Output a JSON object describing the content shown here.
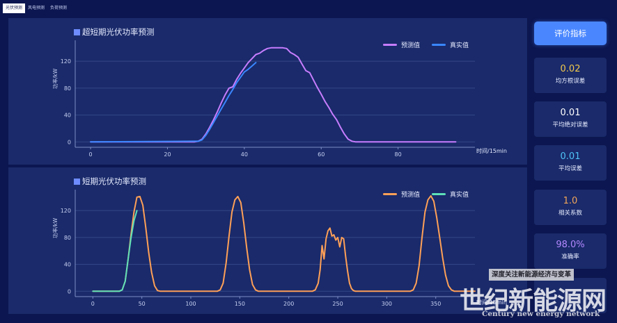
{
  "tabs": [
    {
      "label": "光伏预测",
      "active": true
    },
    {
      "label": "风电预测",
      "active": false
    },
    {
      "label": "负荷预测",
      "active": false
    }
  ],
  "sidebar": {
    "eval_button": "评价指标",
    "metrics": [
      {
        "value": "0.02",
        "label": "均方根误差",
        "color": "#f2c94c"
      },
      {
        "value": "0.01",
        "label": "平均绝对误差",
        "color": "#ffffff"
      },
      {
        "value": "0.01",
        "label": "平均误差",
        "color": "#4fc3f7"
      },
      {
        "value": "1.0",
        "label": "相关系数",
        "color": "#f2a65a"
      },
      {
        "value": "98.0%",
        "label": "准确率",
        "color": "#b388ff"
      },
      {
        "value": "",
        "label": "",
        "color": "#69f0ae"
      }
    ]
  },
  "watermark": {
    "banner": "深度关注新能源经济与变革",
    "big": "世纪新能源网",
    "en": "Century new energy network"
  },
  "chart_data": [
    {
      "type": "line",
      "title": "超短期光伏功率预测",
      "xlabel": "时间/15min",
      "ylabel": "功率/kW",
      "xlim": [
        -4,
        100
      ],
      "ylim": [
        -8,
        145
      ],
      "xticks": [
        0,
        20,
        40,
        60,
        80
      ],
      "yticks": [
        0,
        40,
        80,
        120
      ],
      "legend_position": "top-right",
      "series": [
        {
          "name": "预测值",
          "color": "#c77dff",
          "x": [
            0,
            27,
            28,
            29,
            30,
            31,
            32,
            33,
            34,
            35,
            36,
            37,
            38,
            39,
            40,
            41,
            42,
            43,
            44,
            45,
            46,
            47,
            48,
            49,
            50,
            51,
            52,
            53,
            54,
            55,
            56,
            57,
            58,
            59,
            60,
            61,
            62,
            63,
            64,
            65,
            66,
            67,
            68,
            69,
            70,
            95
          ],
          "values": [
            0,
            0,
            1,
            4,
            12,
            22,
            33,
            45,
            58,
            70,
            80,
            82,
            93,
            102,
            110,
            118,
            124,
            130,
            132,
            136,
            139,
            140,
            140,
            140,
            140,
            139,
            133,
            130,
            126,
            116,
            106,
            103,
            92,
            81,
            71,
            60,
            51,
            41,
            33,
            22,
            12,
            4,
            1,
            0,
            0,
            0
          ]
        },
        {
          "name": "真实值",
          "color": "#3a86ff",
          "x": [
            0,
            28,
            29,
            30,
            31,
            32,
            33,
            34,
            35,
            36,
            37,
            38,
            39,
            40,
            41,
            42,
            43
          ],
          "values": [
            0,
            1,
            3,
            10,
            19,
            29,
            39,
            49,
            59,
            69,
            78,
            88,
            96,
            104,
            108,
            113,
            118
          ]
        }
      ]
    },
    {
      "type": "line",
      "title": "短期光伏功率预测",
      "xlabel": "时间/15min",
      "ylabel": "功率/kW",
      "xlim": [
        -18,
        390
      ],
      "ylim": [
        -8,
        145
      ],
      "xticks": [
        0,
        50,
        100,
        150,
        200,
        250,
        300,
        350
      ],
      "yticks": [
        0,
        40,
        80,
        120
      ],
      "legend_position": "top-right",
      "series": [
        {
          "name": "预测值",
          "color": "#ffa057",
          "x": [
            0,
            27,
            30,
            33,
            36,
            39,
            42,
            45,
            48,
            51,
            54,
            57,
            60,
            63,
            66,
            69,
            127,
            130,
            133,
            136,
            139,
            142,
            145,
            148,
            151,
            154,
            157,
            160,
            163,
            166,
            169,
            224,
            227,
            230,
            232,
            234,
            236,
            238,
            240,
            242,
            244,
            246,
            248,
            250,
            252,
            254,
            256,
            258,
            260,
            262,
            264,
            266,
            268,
            271,
            324,
            327,
            330,
            333,
            336,
            339,
            342,
            345,
            348,
            351,
            354,
            357,
            360,
            363,
            366,
            369,
            390
          ],
          "values": [
            0,
            0,
            2,
            15,
            48,
            85,
            118,
            140,
            141,
            128,
            95,
            58,
            28,
            8,
            1,
            0,
            0,
            2,
            12,
            42,
            82,
            118,
            136,
            141,
            132,
            102,
            65,
            32,
            10,
            2,
            0,
            0,
            2,
            12,
            32,
            68,
            48,
            78,
            90,
            94,
            82,
            84,
            76,
            80,
            66,
            80,
            78,
            52,
            30,
            12,
            4,
            1,
            0,
            0,
            0,
            2,
            12,
            38,
            80,
            118,
            136,
            142,
            134,
            110,
            80,
            50,
            24,
            8,
            2,
            0,
            0
          ]
        },
        {
          "name": "真实值",
          "color": "#5ee0b8",
          "x": [
            0,
            27,
            30,
            33,
            36,
            39,
            42,
            45
          ],
          "values": [
            0,
            0,
            2,
            15,
            48,
            80,
            105,
            120
          ]
        }
      ]
    }
  ]
}
